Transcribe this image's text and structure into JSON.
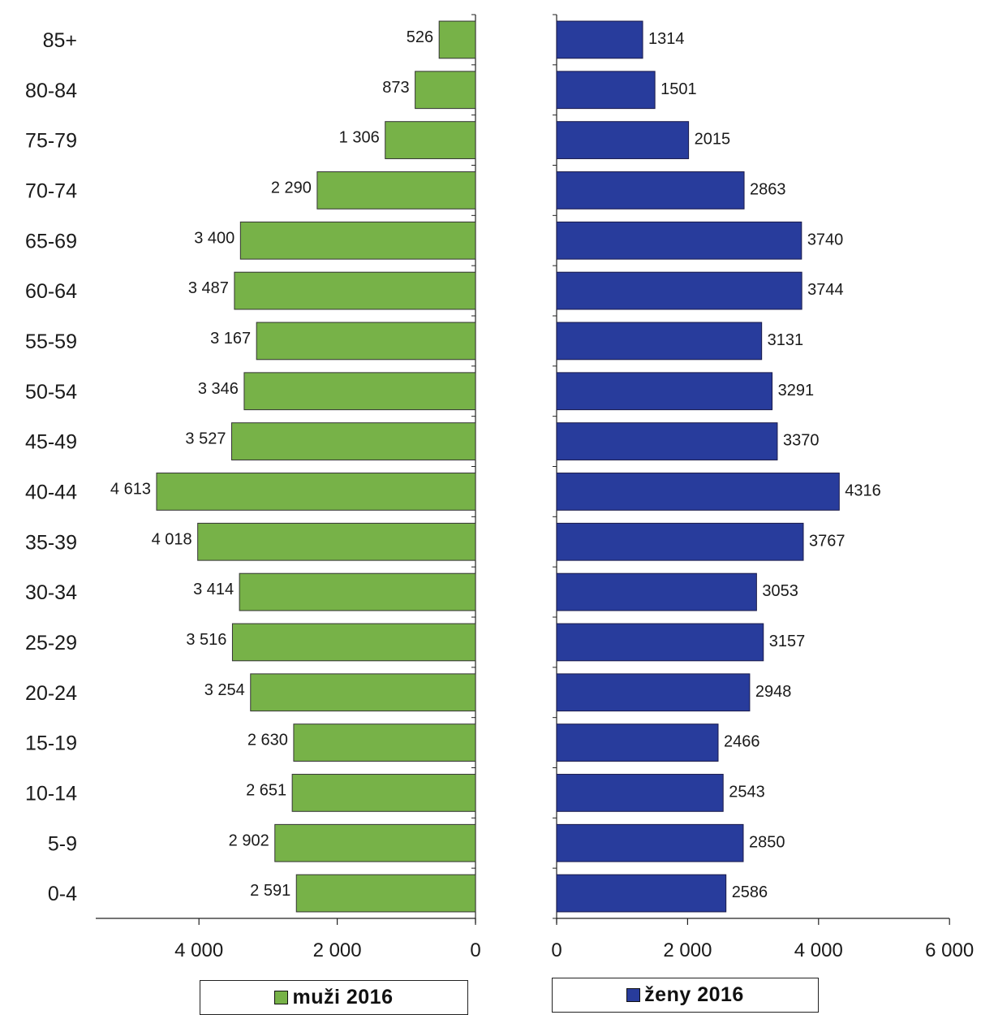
{
  "chart_data": {
    "type": "bar",
    "orientation": "horizontal",
    "categories": [
      "85+",
      "80-84",
      "75-79",
      "70-74",
      "65-69",
      "60-64",
      "55-59",
      "50-54",
      "45-49",
      "40-44",
      "35-39",
      "30-34",
      "25-29",
      "20-24",
      "15-19",
      "10-14",
      "5-9",
      "0-4"
    ],
    "series": [
      {
        "name": "muži 2016",
        "color": "#77b248",
        "values": [
          526,
          873,
          1306,
          2290,
          3400,
          3487,
          3167,
          3346,
          3527,
          4613,
          4018,
          3414,
          3516,
          3254,
          2630,
          2651,
          2902,
          2591
        ],
        "labels": [
          "526",
          "873",
          "1 306",
          "2 290",
          "3 400",
          "3 487",
          "3 167",
          "3 346",
          "3 527",
          "4 613",
          "4 018",
          "3 414",
          "3 516",
          "3 254",
          "2 630",
          "2 651",
          "2 902",
          "2 591"
        ]
      },
      {
        "name": "ženy 2016",
        "color": "#283c9c",
        "values": [
          1314,
          1501,
          2015,
          2863,
          3740,
          3744,
          3131,
          3291,
          3370,
          4316,
          3767,
          3053,
          3157,
          2948,
          2466,
          2543,
          2850,
          2586
        ],
        "labels": [
          "1314",
          "1501",
          "2015",
          "2863",
          "3740",
          "3744",
          "3131",
          "3291",
          "3370",
          "4316",
          "3767",
          "3053",
          "3157",
          "2948",
          "2466",
          "2543",
          "2850",
          "2586"
        ]
      }
    ],
    "left_axis": {
      "reversed": true,
      "ticks": [
        0,
        2000,
        4000
      ],
      "tick_labels": [
        "0",
        "2 000",
        "4 000"
      ],
      "max": 5500
    },
    "right_axis": {
      "ticks": [
        0,
        2000,
        4000,
        6000
      ],
      "tick_labels": [
        "0",
        "2 000",
        "4 000",
        "6 000"
      ],
      "max": 6000
    },
    "grid": false,
    "legend_position": "bottom"
  }
}
